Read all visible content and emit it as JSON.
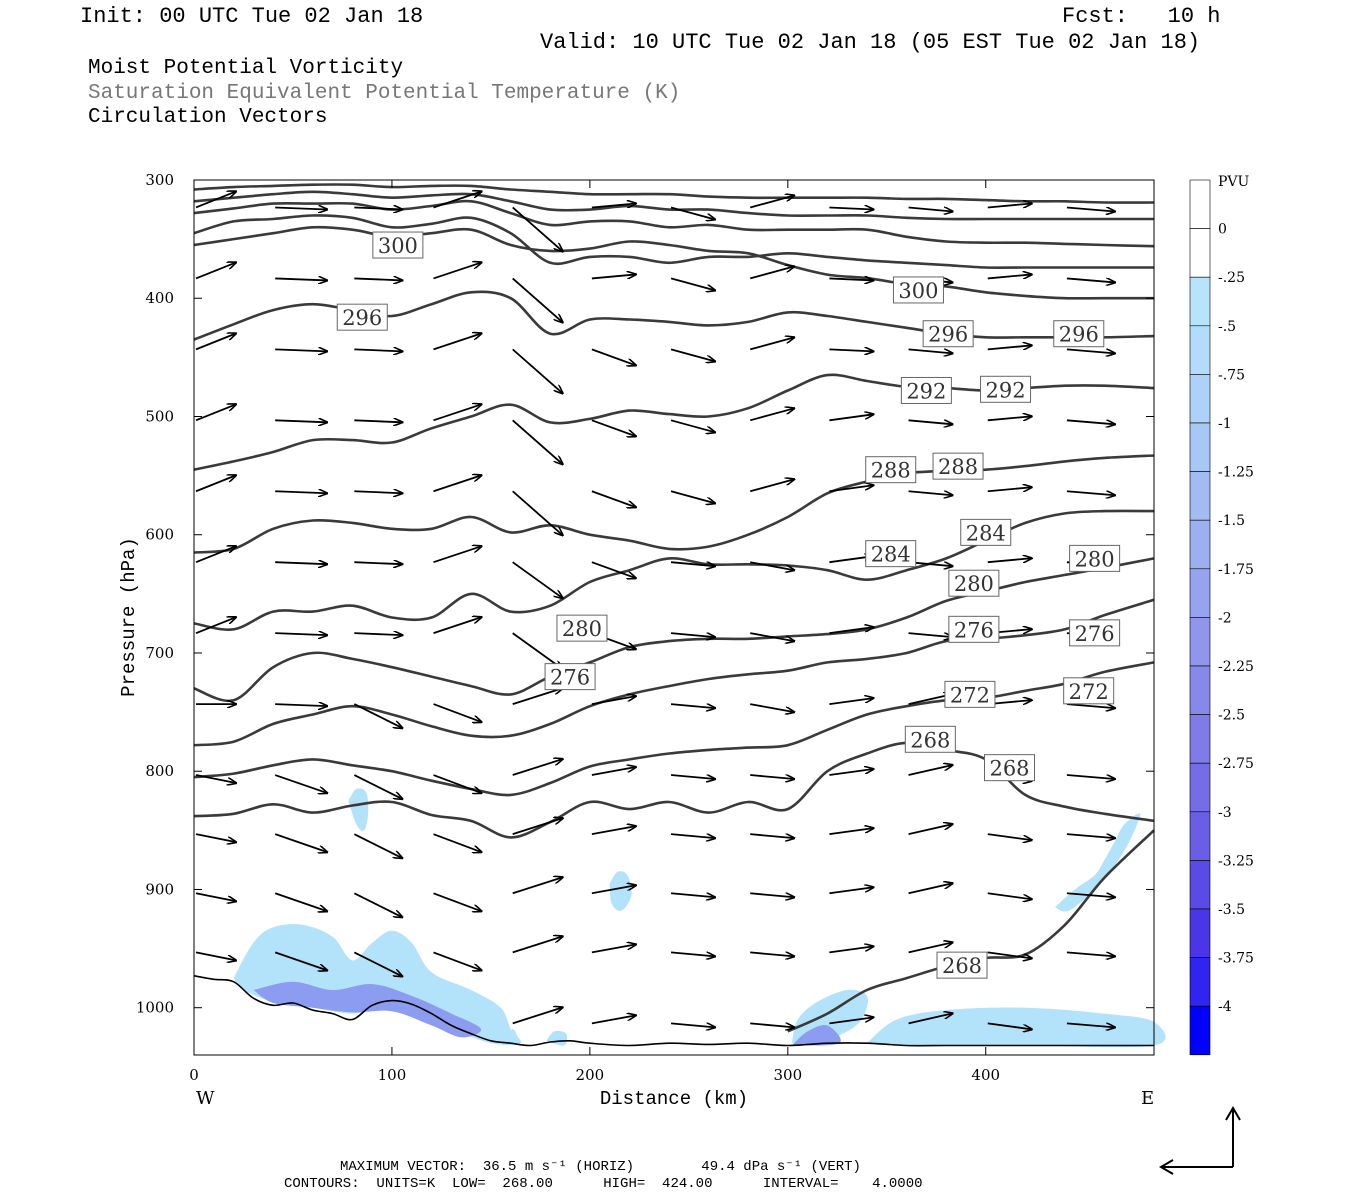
{
  "header": {
    "init": "Init: 00 UTC Tue 02 Jan 18",
    "fcst": "Fcst:   10 h",
    "valid": "Valid: 10 UTC Tue 02 Jan 18 (05 EST Tue 02 Jan 18)",
    "field1": "Moist Potential Vorticity",
    "field2": "Saturation Equivalent Potential Temperature (K)",
    "field3": "Circulation Vectors"
  },
  "footer": {
    "line1": "MAXIMUM VECTOR:  36.5 m s⁻¹ (HORIZ)        49.4 dPa s⁻¹ (VERT)",
    "line2": "CONTOURS:  UNITS=K  LOW=  268.00      HIGH=  424.00      INTERVAL=    4.0000"
  },
  "colors": {
    "contour": "#3a3a3a",
    "pv_light": "#b3e3fa",
    "pv_mid": "#8c9cf0",
    "pv_dark": "#0000ff"
  },
  "chart_data": {
    "type": "heatmap",
    "xlabel": "Distance (km)",
    "ylabel": "Pressure (hPa)",
    "x_ticks": [
      "0",
      "100",
      "200",
      "300",
      "400"
    ],
    "y_ticks": [
      "300",
      "400",
      "500",
      "600",
      "700",
      "800",
      "900",
      "1000"
    ],
    "xlim": [
      0,
      485
    ],
    "ylim": [
      1040,
      300
    ],
    "x_ends": {
      "left": "W",
      "right": "E"
    },
    "colorbar": {
      "unit": "PVU",
      "levels": [
        "0",
        "-.25",
        "-.5",
        "-.75",
        "-1",
        "-1.25",
        "-1.5",
        "-1.75",
        "-2",
        "-2.25",
        "-2.5",
        "-2.75",
        "-3",
        "-3.25",
        "-3.5",
        "-3.75",
        "-4"
      ],
      "colors": [
        "#ffffff",
        "#ffffff",
        "#b8e4fb",
        "#b3dcfa",
        "#aed2f7",
        "#a8c7f5",
        "#a2bbf3",
        "#9caff1",
        "#96a3ef",
        "#8f96ec",
        "#8789ea",
        "#7f7ce8",
        "#746de6",
        "#6a5ee5",
        "#5a4ae6",
        "#4a36e8",
        "#3024ef",
        "#0000ff"
      ]
    },
    "theta_es_contours": [
      {
        "level": 268,
        "label": "268",
        "x": [
          0,
          20,
          40,
          60,
          80,
          100,
          120,
          140,
          160,
          180,
          200,
          220,
          240,
          260,
          280,
          300,
          320,
          340,
          360,
          380,
          400,
          420,
          440,
          460,
          485
        ],
        "y": [
          838,
          836,
          828,
          835,
          829,
          826,
          837,
          842,
          856,
          843,
          826,
          832,
          826,
          835,
          826,
          832,
          800,
          785,
          776,
          782,
          790,
          820,
          830,
          836,
          842
        ]
      },
      {
        "level": 268,
        "label": "268",
        "x": [
          300,
          320,
          340,
          360,
          380,
          400,
          420,
          440,
          460,
          485
        ],
        "y": [
          1020,
          1005,
          985,
          975,
          965,
          958,
          955,
          930,
          890,
          850
        ]
      },
      {
        "level": 272,
        "label": "272",
        "x": [
          0,
          20,
          40,
          60,
          80,
          100,
          120,
          140,
          160,
          180,
          200,
          220,
          240,
          260,
          280,
          300,
          320,
          340,
          360,
          380,
          400,
          420,
          440,
          460,
          485
        ],
        "y": [
          805,
          802,
          795,
          790,
          795,
          800,
          808,
          815,
          820,
          810,
          796,
          790,
          785,
          782,
          780,
          778,
          765,
          752,
          745,
          740,
          738,
          732,
          726,
          716,
          708
        ]
      },
      {
        "level": 276,
        "label": "276",
        "x": [
          0,
          20,
          40,
          60,
          80,
          100,
          120,
          140,
          160,
          180,
          200,
          220,
          240,
          260,
          280,
          300,
          320,
          340,
          360,
          380,
          400,
          420,
          440,
          460,
          485
        ],
        "y": [
          778,
          775,
          760,
          752,
          745,
          752,
          762,
          770,
          770,
          760,
          745,
          735,
          728,
          722,
          718,
          715,
          708,
          705,
          700,
          690,
          688,
          685,
          680,
          668,
          655
        ]
      },
      {
        "level": 280,
        "label": "280",
        "x": [
          0,
          20,
          40,
          60,
          80,
          100,
          120,
          140,
          160,
          180,
          200,
          220,
          240,
          260,
          280,
          300,
          320,
          340,
          360,
          380,
          400,
          420,
          440,
          460,
          485
        ],
        "y": [
          730,
          740,
          712,
          700,
          705,
          712,
          720,
          728,
          735,
          720,
          708,
          695,
          690,
          688,
          688,
          686,
          684,
          680,
          670,
          656,
          648,
          640,
          634,
          628,
          620
        ]
      },
      {
        "level": 284,
        "label": "284",
        "x": [
          0,
          20,
          40,
          60,
          80,
          100,
          120,
          140,
          160,
          180,
          200,
          220,
          240,
          260,
          280,
          300,
          320,
          340,
          360,
          380,
          400,
          420,
          440,
          460,
          485
        ],
        "y": [
          675,
          680,
          665,
          665,
          660,
          670,
          670,
          650,
          665,
          660,
          640,
          630,
          620,
          625,
          625,
          626,
          630,
          638,
          630,
          620,
          605,
          590,
          582,
          580,
          580
        ]
      },
      {
        "level": 288,
        "label": "288",
        "x": [
          0,
          20,
          40,
          60,
          80,
          100,
          120,
          140,
          160,
          180,
          200,
          220,
          240,
          260,
          280,
          300,
          320,
          340,
          360,
          380,
          400,
          420,
          440,
          460,
          485
        ],
        "y": [
          615,
          612,
          595,
          588,
          590,
          595,
          595,
          585,
          598,
          592,
          600,
          605,
          612,
          610,
          600,
          585,
          565,
          555,
          548,
          546,
          545,
          542,
          538,
          535,
          533
        ]
      },
      {
        "level": 292,
        "label": "292",
        "x": [
          0,
          20,
          40,
          60,
          80,
          100,
          120,
          140,
          160,
          180,
          200,
          220,
          240,
          260,
          280,
          300,
          320,
          340,
          360,
          380,
          400,
          420,
          440,
          460,
          485
        ],
        "y": [
          545,
          538,
          530,
          520,
          520,
          522,
          510,
          500,
          490,
          505,
          502,
          495,
          498,
          500,
          493,
          478,
          465,
          470,
          475,
          476,
          478,
          476,
          474,
          474,
          476
        ]
      },
      {
        "level": 296,
        "label": "296",
        "x": [
          0,
          20,
          40,
          60,
          80,
          100,
          120,
          140,
          160,
          180,
          200,
          220,
          240,
          260,
          280,
          300,
          320,
          340,
          360,
          380,
          400,
          420,
          440,
          460,
          485
        ],
        "y": [
          435,
          422,
          410,
          405,
          410,
          415,
          405,
          395,
          400,
          430,
          418,
          418,
          420,
          423,
          420,
          412,
          415,
          420,
          425,
          430,
          433,
          433,
          433,
          433,
          432
        ]
      },
      {
        "level": 300,
        "label": "300",
        "x": [
          0,
          20,
          40,
          60,
          80,
          100,
          120,
          140,
          160,
          180,
          200,
          220,
          240,
          260,
          280,
          300,
          320,
          340,
          360,
          380,
          400,
          420,
          440,
          460,
          485
        ],
        "y": [
          355,
          350,
          345,
          340,
          342,
          348,
          345,
          342,
          355,
          360,
          358,
          352,
          355,
          360,
          362,
          372,
          380,
          383,
          388,
          390,
          395,
          398,
          400,
          400,
          400
        ]
      },
      {
        "level": 304,
        "label": "",
        "x": [
          0,
          20,
          40,
          60,
          80,
          100,
          120,
          140,
          160,
          180,
          200,
          220,
          240,
          260,
          280,
          300,
          320,
          340,
          360,
          380,
          400,
          420,
          440,
          460,
          485
        ],
        "y": [
          345,
          335,
          333,
          330,
          332,
          340,
          337,
          332,
          345,
          370,
          365,
          365,
          370,
          365,
          365,
          362,
          365,
          368,
          370,
          372,
          374,
          374,
          374,
          374,
          374
        ]
      },
      {
        "level": 308,
        "label": "",
        "x": [
          0,
          20,
          40,
          60,
          80,
          100,
          120,
          140,
          160,
          180,
          200,
          220,
          240,
          260,
          280,
          300,
          320,
          340,
          360,
          380,
          400,
          420,
          440,
          460,
          485
        ],
        "y": [
          328,
          324,
          320,
          320,
          320,
          325,
          322,
          318,
          328,
          338,
          335,
          335,
          340,
          338,
          342,
          342,
          342,
          342,
          348,
          352,
          353,
          353,
          354,
          355,
          356
        ]
      },
      {
        "level": 312,
        "label": "",
        "x": [
          0,
          20,
          40,
          60,
          80,
          100,
          120,
          140,
          160,
          180,
          200,
          220,
          240,
          260,
          280,
          300,
          320,
          340,
          360,
          380,
          400,
          420,
          440,
          460,
          485
        ],
        "y": [
          318,
          315,
          312,
          310,
          312,
          315,
          313,
          312,
          318,
          325,
          325,
          322,
          325,
          325,
          328,
          330,
          330,
          330,
          332,
          333,
          333,
          333,
          333,
          333,
          333
        ]
      },
      {
        "level": 316,
        "label": "",
        "x": [
          0,
          20,
          40,
          60,
          80,
          100,
          120,
          140,
          160,
          180,
          200,
          220,
          240,
          260,
          280,
          300,
          320,
          340,
          360,
          380,
          400,
          420,
          440,
          460,
          485
        ],
        "y": [
          308,
          306,
          305,
          304,
          304,
          306,
          305,
          305,
          308,
          310,
          312,
          312,
          312,
          314,
          315,
          315,
          315,
          315,
          316,
          316,
          317,
          318,
          318,
          319,
          319
        ]
      }
    ],
    "terrain_profile": {
      "x": [
        0,
        10,
        20,
        30,
        40,
        50,
        60,
        70,
        80,
        90,
        100,
        110,
        120,
        130,
        140,
        150,
        160,
        170,
        180,
        190,
        200,
        220,
        240,
        260,
        280,
        300,
        320,
        340,
        360,
        380,
        400,
        420,
        440,
        460,
        485
      ],
      "y": [
        973,
        976,
        978,
        992,
        998,
        996,
        1002,
        1005,
        1010,
        998,
        994,
        997,
        1005,
        1015,
        1022,
        1028,
        1030,
        1032,
        1029,
        1028,
        1030,
        1032,
        1030,
        1031,
        1030,
        1032,
        1030,
        1030,
        1032,
        1032,
        1032,
        1032,
        1032,
        1032,
        1032
      ]
    },
    "vectors": {
      "columns_x": [
        0,
        40,
        80,
        120,
        160,
        200,
        240,
        280,
        320,
        360,
        400,
        440
      ],
      "note": "circulation vectors (u, omega) drawn as arrows; maximum vector 36.5 m s-1 horizontal, 49.4 dPa s-1 vertical"
    }
  }
}
